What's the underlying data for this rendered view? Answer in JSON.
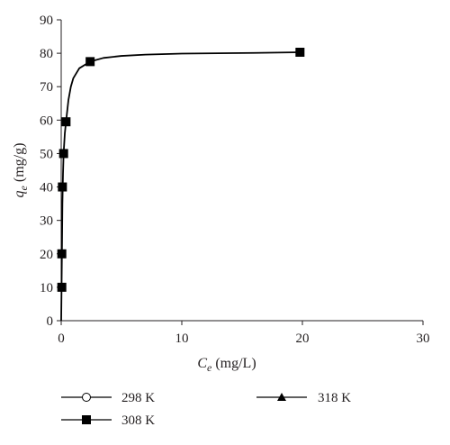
{
  "chart_data": {
    "type": "scatter",
    "title": "",
    "xlabel": {
      "symbol": "C",
      "subscript": "e",
      "unit": " (mg/L)"
    },
    "ylabel": {
      "symbol": "q",
      "subscript": "e",
      "unit": " (mg/g)"
    },
    "xlim": [
      0,
      30
    ],
    "ylim": [
      0,
      90
    ],
    "xticks": [
      0,
      10,
      20,
      30
    ],
    "yticks": [
      0,
      10,
      20,
      30,
      40,
      50,
      60,
      70,
      80,
      90
    ],
    "grid": false,
    "legend_position": "bottom",
    "series": [
      {
        "name": "298 K",
        "marker": "circle-open",
        "x": [],
        "y": []
      },
      {
        "name": "308 K",
        "marker": "square-filled",
        "x": [
          0.05,
          0.05,
          0.1,
          0.2,
          0.4,
          2.4,
          19.8
        ],
        "y": [
          10,
          20,
          40,
          50,
          59.5,
          77.5,
          80.3
        ]
      },
      {
        "name": "318 K",
        "marker": "triangle-filled",
        "x": [],
        "y": []
      }
    ],
    "fit_curve": {
      "series": "308 K",
      "x": [
        0,
        0.03,
        0.06,
        0.1,
        0.15,
        0.2,
        0.3,
        0.4,
        0.6,
        0.8,
        1.0,
        1.5,
        2.4,
        3.5,
        5,
        7,
        10,
        13,
        16,
        19.8
      ],
      "y": [
        0,
        10,
        20,
        35,
        44,
        50,
        56,
        59.5,
        66,
        70,
        72.5,
        75.5,
        77.5,
        78.6,
        79.2,
        79.6,
        79.9,
        80.0,
        80.1,
        80.3
      ]
    },
    "colors": {
      "axis": "#231f20",
      "marker": "#000000",
      "line": "#000000"
    }
  }
}
